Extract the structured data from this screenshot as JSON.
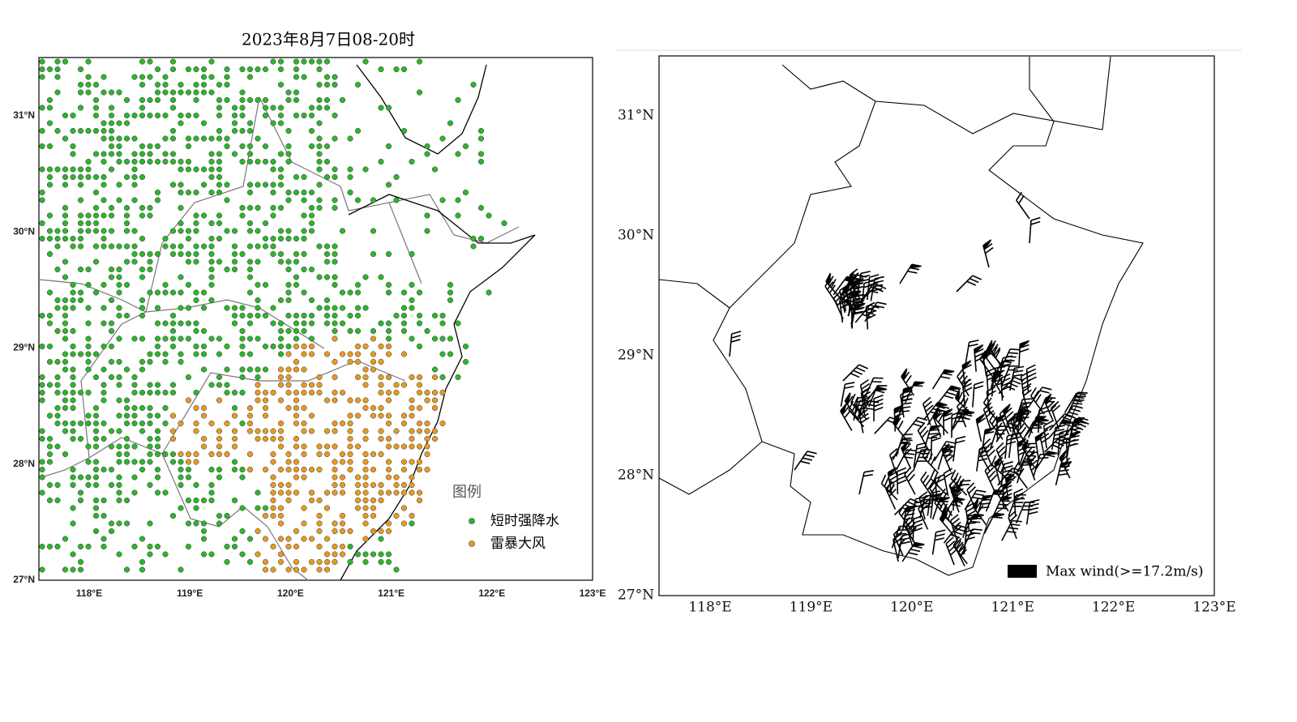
{
  "left_map": {
    "title": "2023年8月7日08-20时",
    "x_labels": [
      "118°E",
      "119°E",
      "120°E",
      "121°E",
      "122°E",
      "123°E"
    ],
    "y_labels": [
      "31°N",
      "30°N",
      "29°N",
      "28°N",
      "27°N"
    ],
    "legend": {
      "title": "图例",
      "items": [
        "短时强降水",
        "雷暴大风"
      ]
    }
  },
  "right_map": {
    "x_labels": [
      "118°E",
      "119°E",
      "120°E",
      "121°E",
      "122°E",
      "123°E"
    ],
    "y_labels": [
      "31°N",
      "30°N",
      "29°N",
      "28°N",
      "27°N"
    ],
    "legend": "Max wind(>=17.2m/s)"
  }
}
